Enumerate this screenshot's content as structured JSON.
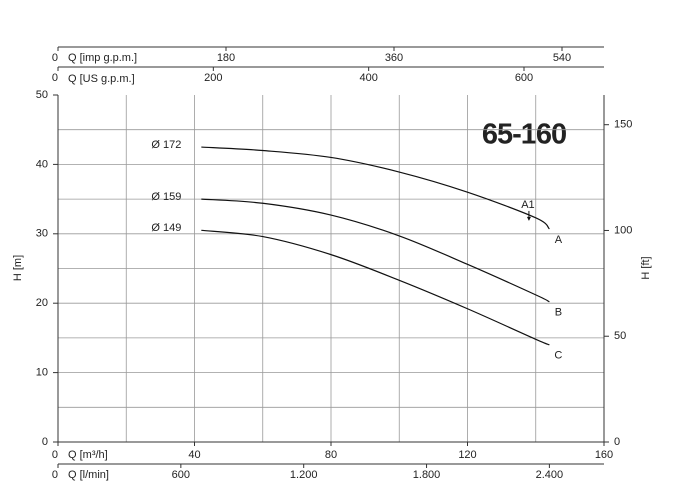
{
  "chart_data": {
    "type": "line",
    "title": "65-160",
    "x_label": "Q [m³/h]",
    "y_label": "H [m]",
    "y2_label": "H [ft]",
    "x": [
      42,
      60,
      80,
      100,
      120,
      140,
      144
    ],
    "series": [
      {
        "name": "Ø 172",
        "label": "A",
        "color": "#111111",
        "values": [
          42.5,
          42,
          41,
          38.9,
          36,
          32.3,
          30.7
        ]
      },
      {
        "name": "Ø 159",
        "label": "B",
        "color": "#111111",
        "values": [
          35,
          34.4,
          32.7,
          29.7,
          25.6,
          21.2,
          20.2
        ]
      },
      {
        "name": "Ø 149",
        "label": "C",
        "color": "#111111",
        "values": [
          30.5,
          29.6,
          27,
          23.3,
          19.2,
          14.8,
          14
        ]
      }
    ],
    "annotation": {
      "label": "A1",
      "x": 138,
      "y": 32
    },
    "xlim": [
      0,
      160
    ],
    "xticks": [
      0,
      40,
      80,
      120,
      160
    ],
    "xgrid": [
      20,
      40,
      60,
      80,
      100,
      120,
      140
    ],
    "ylim": [
      0,
      50
    ],
    "yticks": [
      0,
      10,
      20,
      30,
      40,
      50
    ],
    "ygrid": [
      5,
      10,
      15,
      20,
      25,
      30,
      35,
      40,
      45
    ],
    "y2lim": [
      0,
      164.04
    ],
    "y2ticks": [
      0,
      50,
      100,
      150
    ],
    "bottom_axis": {
      "label": "Q [l/min]",
      "lim": [
        0,
        2666.7
      ],
      "ticks": [
        0,
        600,
        {
          "value": 1200,
          "label": "1.200"
        },
        {
          "value": 1800,
          "label": "1.800"
        },
        {
          "value": 2400,
          "label": "2.400"
        }
      ]
    },
    "top_axes": [
      {
        "label": "Q [imp g.p.m.]",
        "lim": [
          0,
          585
        ],
        "ticks": [
          0,
          180,
          360,
          540
        ]
      },
      {
        "label": "Q [US g.p.m.]",
        "lim": [
          0,
          703
        ],
        "ticks": [
          0,
          200,
          400,
          600
        ]
      }
    ]
  }
}
